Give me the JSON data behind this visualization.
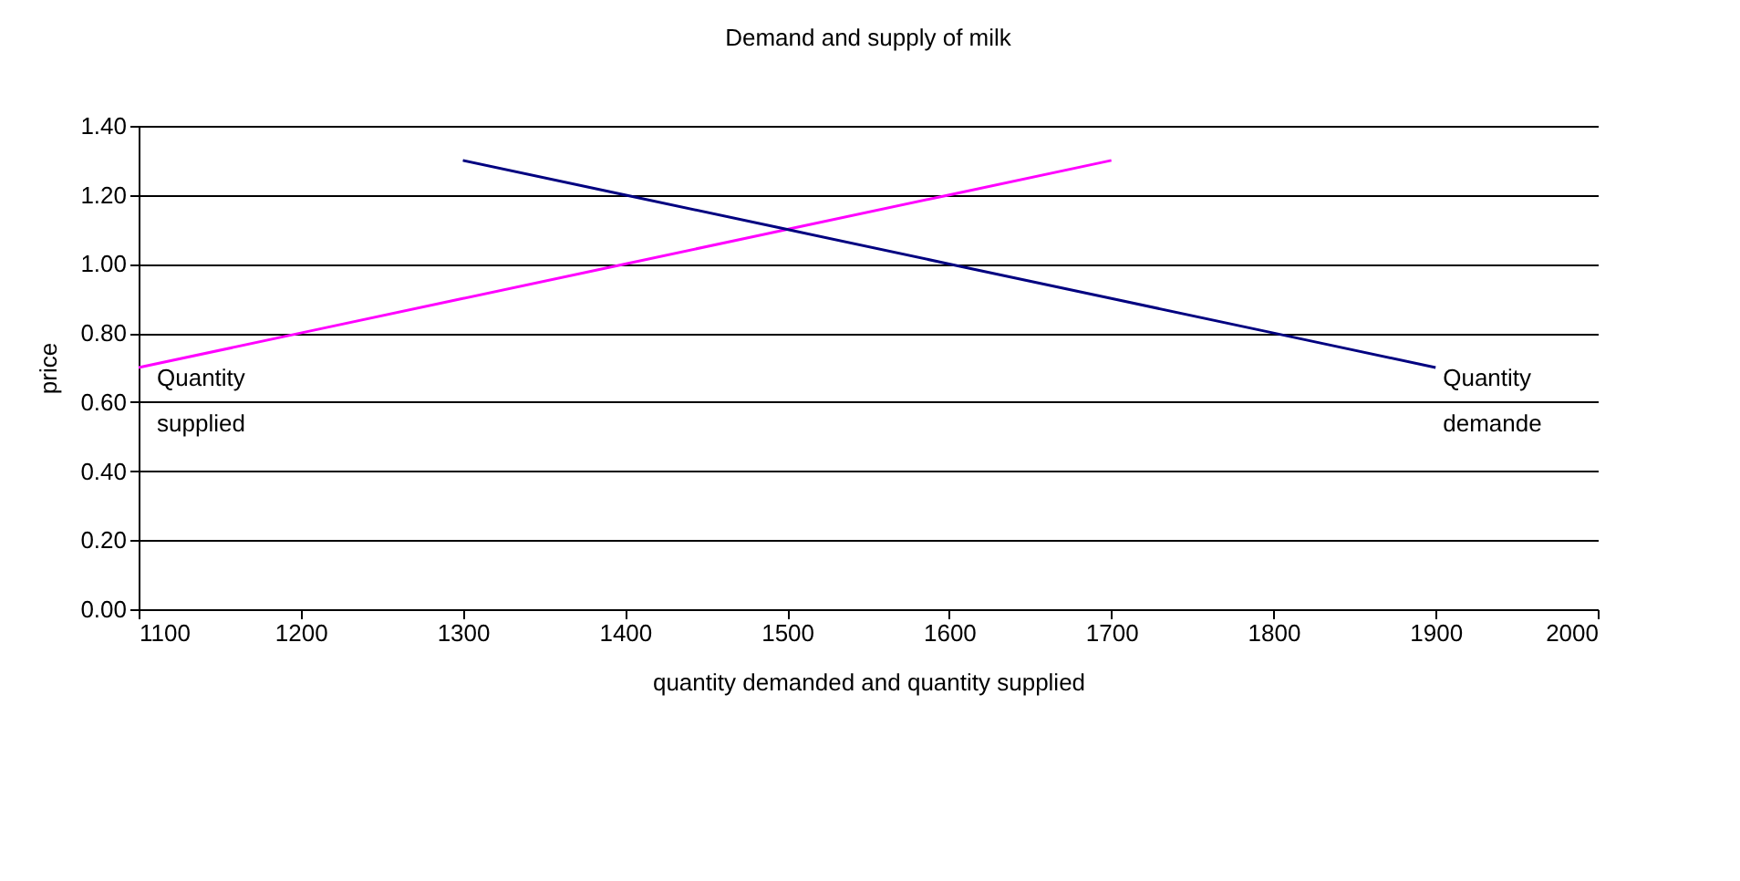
{
  "chart_data": {
    "type": "line",
    "title": "Demand and supply of milk",
    "xlabel": "quantity demanded and quantity supplied",
    "ylabel": "price",
    "series": [
      {
        "name": "Quantity supplied",
        "color": "#ff00ff",
        "x": [
          1100,
          1200,
          1300,
          1400,
          1500,
          1600,
          1700
        ],
        "values": [
          0.7,
          0.8,
          0.9,
          1.0,
          1.1,
          1.2,
          1.3
        ]
      },
      {
        "name": "Quantity demande",
        "color": "#000080",
        "x": [
          1300,
          1400,
          1500,
          1600,
          1700,
          1800,
          1900
        ],
        "values": [
          1.3,
          1.2,
          1.1,
          1.0,
          0.9,
          0.8,
          0.7
        ]
      }
    ],
    "xlim": [
      1100,
      2000
    ],
    "xticks": [
      1100,
      1200,
      1300,
      1400,
      1500,
      1600,
      1700,
      1800,
      1900,
      2000
    ],
    "ylim": [
      0,
      1.4
    ],
    "yticks": [
      {
        "value": 0,
        "label": "0.00"
      },
      {
        "value": 0.2,
        "label": "0.20"
      },
      {
        "value": 0.4,
        "label": "0.40"
      },
      {
        "value": 0.6,
        "label": "0.60"
      },
      {
        "value": 0.8,
        "label": "0.80"
      },
      {
        "value": 1.0,
        "label": "1.00"
      },
      {
        "value": 1.2,
        "label": "1.20"
      },
      {
        "value": 1.4,
        "label": "1.40"
      }
    ],
    "grid": "y",
    "legend": false,
    "marker": "none",
    "line_style": "solid"
  }
}
